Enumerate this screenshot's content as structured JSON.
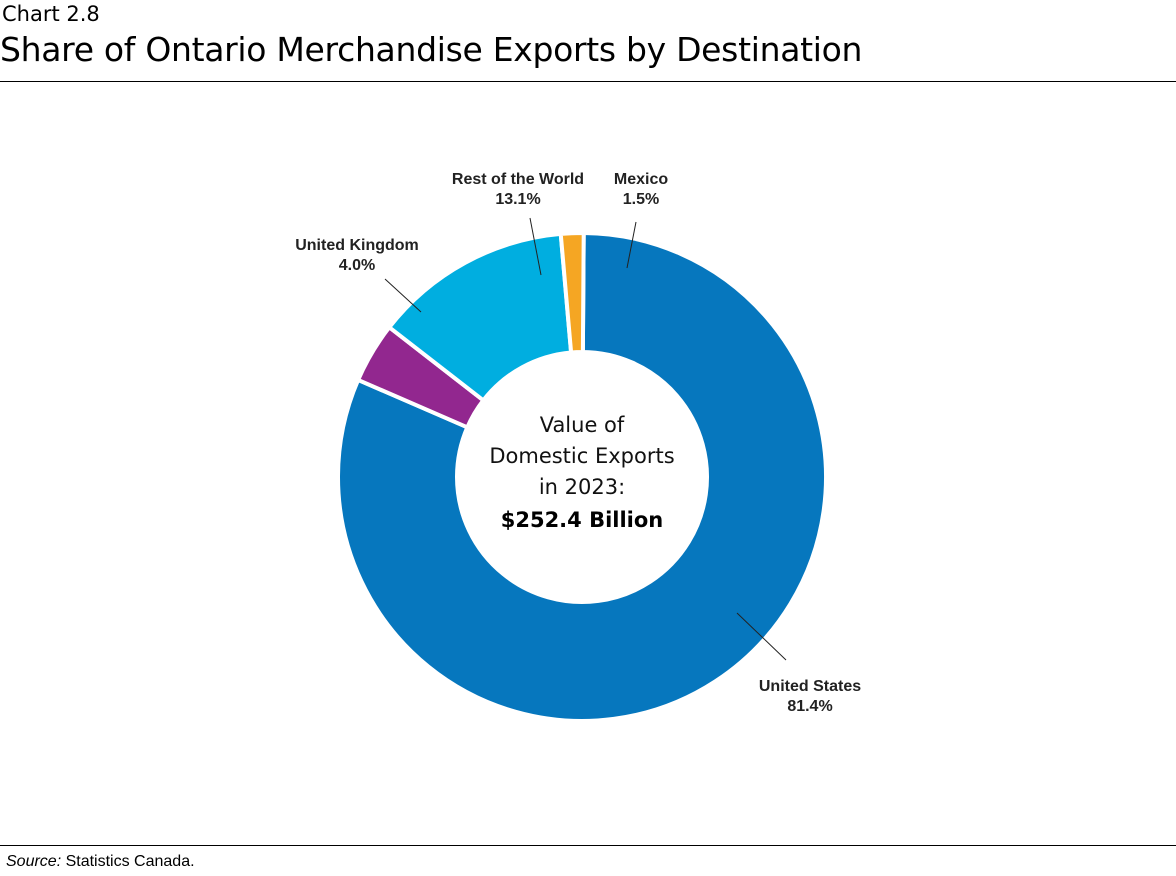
{
  "header": {
    "chart_number": "Chart 2.8",
    "title": "Share of Ontario Merchandise Exports by Destination"
  },
  "center": {
    "line1": "Value of",
    "line2": "Domestic Exports",
    "line3": "in 2023:",
    "value": "$252.4 Billion"
  },
  "footer": {
    "source_label": "Source:",
    "source_text": " Statistics Canada."
  },
  "slices": [
    {
      "name": "United States",
      "pct_label": "81.4%",
      "color": "#0677BE"
    },
    {
      "name": "United Kingdom",
      "pct_label": "4.0%",
      "color": "#92278F"
    },
    {
      "name": "Rest of the World",
      "pct_label": "13.1%",
      "color": "#00AEE0"
    },
    {
      "name": "Mexico",
      "pct_label": "1.5%",
      "color": "#F5A623"
    }
  ],
  "chart_data": {
    "type": "pie",
    "variant": "donut",
    "title": "Share of Ontario Merchandise Exports by Destination",
    "subtitle": "Chart 2.8",
    "categories": [
      "United States",
      "United Kingdom",
      "Rest of the World",
      "Mexico"
    ],
    "values": [
      81.4,
      4.0,
      13.1,
      1.5
    ],
    "unit": "%",
    "colors": [
      "#0677BE",
      "#92278F",
      "#00AEE0",
      "#F5A623"
    ],
    "center_annotation": "Value of Domestic Exports in 2023: $252.4 Billion",
    "source": "Source: Statistics Canada.",
    "legend": "none (direct labels with leader lines)"
  }
}
